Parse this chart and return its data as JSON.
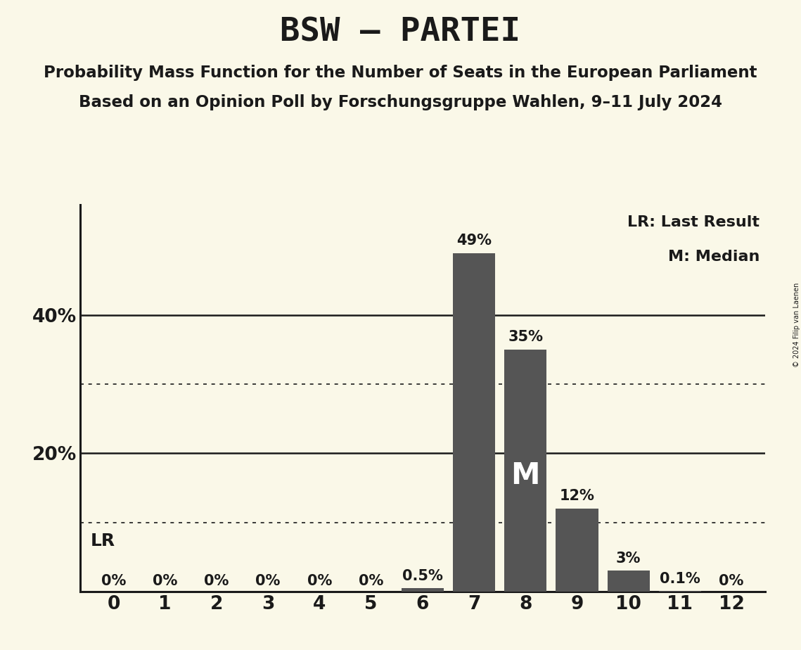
{
  "title": "BSW – PARTEI",
  "subtitle1": "Probability Mass Function for the Number of Seats in the European Parliament",
  "subtitle2": "Based on an Opinion Poll by Forschungsgruppe Wahlen, 9–11 July 2024",
  "copyright": "© 2024 Filip van Laenen",
  "seats": [
    0,
    1,
    2,
    3,
    4,
    5,
    6,
    7,
    8,
    9,
    10,
    11,
    12
  ],
  "probabilities": [
    0.0,
    0.0,
    0.0,
    0.0,
    0.0,
    0.0,
    0.5,
    49.0,
    35.0,
    12.0,
    3.0,
    0.1,
    0.0
  ],
  "bar_color": "#555555",
  "bar_labels": [
    "0%",
    "0%",
    "0%",
    "0%",
    "0%",
    "0%",
    "0.5%",
    "49%",
    "35%",
    "12%",
    "3%",
    "0.1%",
    "0%"
  ],
  "background_color": "#faf8e8",
  "text_color": "#1a1a1a",
  "ylim": [
    0,
    56
  ],
  "dotted_lines": [
    10,
    30
  ],
  "solid_lines": [
    20,
    40
  ],
  "median_seat": 8,
  "lr_seat": 6,
  "legend_lr": "LR: Last Result",
  "legend_m": "M: Median",
  "title_fontsize": 34,
  "subtitle_fontsize": 16.5,
  "label_fontsize": 15,
  "axis_fontsize": 19
}
